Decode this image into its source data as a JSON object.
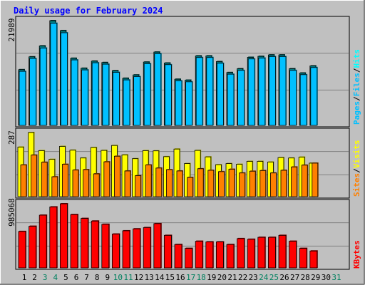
{
  "colors": {
    "background": "#c0c0c0",
    "title": "#0000ff",
    "grid": "#808080",
    "hits": "#00ffff",
    "hits_side": "#008080",
    "files": "#00c0ff",
    "files_side": "#0080a0",
    "sites": "#ff8000",
    "sites_side": "#a05000",
    "visits": "#ffff00",
    "visits_side": "#a0a000",
    "kbytes": "#ff0000",
    "kbytes_side": "#800000",
    "pages": "#00c0ff",
    "sep_slash": "#000000",
    "day_weekday": "#000000",
    "day_weekend": "#00805f"
  },
  "chart_data": {
    "type": "bar",
    "title": "Daily usage for February 2024",
    "days": [
      "1",
      "2",
      "3",
      "4",
      "5",
      "6",
      "7",
      "8",
      "9",
      "10",
      "11",
      "12",
      "13",
      "14",
      "15",
      "16",
      "17",
      "18",
      "19",
      "20",
      "21",
      "22",
      "23",
      "24",
      "25",
      "26",
      "27",
      "28",
      "29",
      "30",
      "31"
    ],
    "weekend_days": [
      "3",
      "4",
      "10",
      "11",
      "17",
      "18",
      "24",
      "25",
      "31"
    ],
    "panels": [
      {
        "name": "hits-files-pages",
        "max_label": "21989",
        "ymax": 21989,
        "legend": [
          "Pages",
          "/",
          "Files",
          "/",
          "Hits"
        ],
        "series": [
          {
            "name": "Hits",
            "values": [
              11700,
              14400,
              16700,
              21989,
              19900,
              14100,
              12000,
              13500,
              13200,
              11500,
              9900,
              10600,
              13300,
              15400,
              13100,
              9700,
              9500,
              14600,
              14600,
              13400,
              11100,
              11900,
              14300,
              14500,
              14800,
              14800,
              11900,
              11000,
              12500,
              0,
              0
            ]
          },
          {
            "name": "Files",
            "values": [
              11500,
              14200,
              16400,
              21600,
              19600,
              13900,
              11800,
              13300,
              13000,
              11300,
              9700,
              10400,
              13100,
              15200,
              12900,
              9500,
              9300,
              14400,
              14400,
              13200,
              10900,
              11700,
              14100,
              14300,
              14600,
              14600,
              11700,
              10800,
              12300,
              0,
              0
            ]
          },
          {
            "name": "Pages",
            "values": [
              11500,
              14200,
              16400,
              21600,
              19600,
              13900,
              11800,
              13300,
              13000,
              11300,
              9700,
              10400,
              13100,
              15200,
              12900,
              9500,
              9300,
              14400,
              14400,
              13200,
              10900,
              11700,
              14100,
              14300,
              14600,
              14600,
              11700,
              10800,
              12300,
              0,
              0
            ]
          }
        ]
      },
      {
        "name": "visits-sites",
        "max_label": "287",
        "ymax": 287,
        "legend": [
          "Sites",
          "/",
          "Visits"
        ],
        "series": [
          {
            "name": "Visits",
            "values": [
              222,
              287,
              206,
              167,
              225,
              208,
              173,
              220,
              207,
              229,
              187,
              170,
              206,
              205,
              179,
              213,
              148,
              207,
              178,
              143,
              148,
              145,
              158,
              158,
              155,
              175,
              173,
              177,
              150,
              0,
              0
            ]
          },
          {
            "name": "Sites",
            "values": [
              142,
              186,
              154,
              89,
              145,
              119,
              121,
              102,
              156,
              181,
              115,
              94,
              142,
              128,
              121,
              115,
              86,
              125,
              118,
              112,
              123,
              106,
              114,
              117,
              106,
              118,
              133,
              141,
              150,
              0,
              0
            ]
          }
        ]
      },
      {
        "name": "kbytes",
        "max_label": "985068",
        "ymax": 985068,
        "legend": [
          "KBytes"
        ],
        "series": [
          {
            "name": "KBytes",
            "values": [
              560000,
              640000,
              810000,
              937000,
              985068,
              820000,
              760000,
              720000,
              670000,
              520000,
              570000,
              600000,
              620000,
              680000,
              500000,
              360000,
              300000,
              410000,
              400000,
              400000,
              360000,
              450000,
              440000,
              470000,
              470000,
              500000,
              410000,
              300000,
              260000,
              0,
              0
            ]
          }
        ]
      }
    ]
  }
}
